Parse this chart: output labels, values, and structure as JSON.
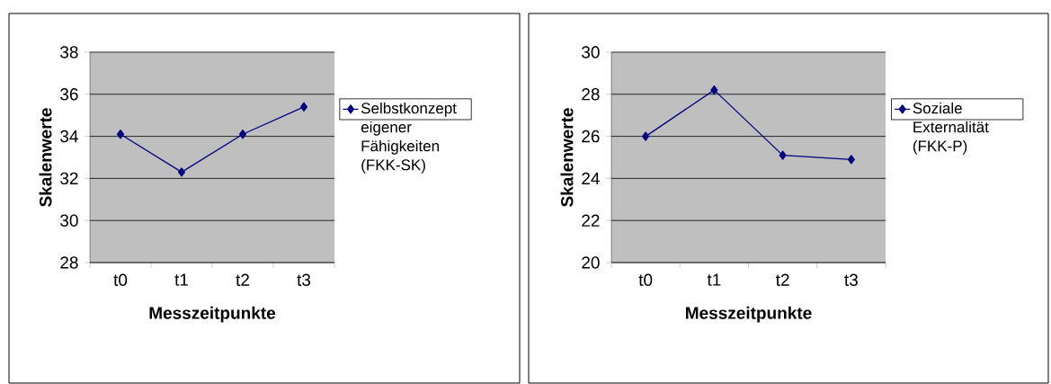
{
  "chart_data": [
    {
      "type": "line",
      "categories": [
        "t0",
        "t1",
        "t2",
        "t3"
      ],
      "xlabel": "Messzeitpunkte",
      "ylabel": "Skalenwerte",
      "ylim": [
        28,
        38
      ],
      "yticks": [
        28,
        30,
        32,
        34,
        36,
        38
      ],
      "grid": "y",
      "legend": "right",
      "marker": "diamond",
      "series": [
        {
          "name": "Selbstkonzept eigener Fähigkeiten (FKK-SK)",
          "color": "#000080",
          "values": [
            34.1,
            32.3,
            34.1,
            35.4
          ]
        }
      ]
    },
    {
      "type": "line",
      "categories": [
        "t0",
        "t1",
        "t2",
        "t3"
      ],
      "xlabel": "Messzeitpunkte",
      "ylabel": "Skalenwerte",
      "ylim": [
        20,
        30
      ],
      "yticks": [
        20,
        22,
        24,
        26,
        28,
        30
      ],
      "grid": "y",
      "legend": "right",
      "marker": "diamond",
      "series": [
        {
          "name": "Soziale Externalität (FKK-P)",
          "color": "#000080",
          "values": [
            26.0,
            28.2,
            25.1,
            24.9
          ]
        }
      ]
    }
  ]
}
